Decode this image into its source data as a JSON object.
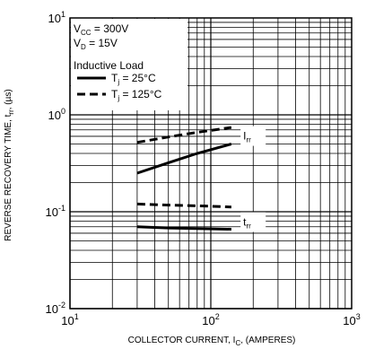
{
  "chart_data": {
    "type": "line",
    "xlabel": "COLLECTOR CURRENT, I",
    "xlabel_sub": "C",
    "xlabel_suffix": ", (AMPERES)",
    "ylabel": "REVERSE RECOVERY TIME, t",
    "ylabel_sub": "rr",
    "ylabel_suffix": ", (µs)",
    "x_scale": "log",
    "y_scale": "log",
    "xlim": [
      10,
      1000
    ],
    "ylim": [
      0.01,
      10
    ],
    "grid": true,
    "x_ticks": [
      {
        "value": 10,
        "base": "10",
        "exp": "1"
      },
      {
        "value": 100,
        "base": "10",
        "exp": "2"
      },
      {
        "value": 1000,
        "base": "10",
        "exp": "3"
      }
    ],
    "y_ticks": [
      {
        "value": 10,
        "base": "10",
        "exp": "1"
      },
      {
        "value": 1,
        "base": "10",
        "exp": "0"
      },
      {
        "value": 0.1,
        "base": "10",
        "exp": "-1"
      },
      {
        "value": 0.01,
        "base": "10",
        "exp": "-2"
      }
    ],
    "conditions": {
      "vcc": {
        "prefix": "V",
        "sub": "CC",
        "suffix": " = 300V"
      },
      "vd": {
        "prefix": "V",
        "sub": "D",
        "suffix": " = 15V"
      },
      "load": "Inductive Load"
    },
    "legend": [
      {
        "style": "solid",
        "prefix": "T",
        "sub": "j",
        "suffix": " = 25°C"
      },
      {
        "style": "dashed",
        "prefix": "T",
        "sub": "j",
        "suffix": " = 125°C"
      }
    ],
    "series": [
      {
        "quantity": "Irr",
        "style": "solid",
        "x": [
          30,
          50,
          80,
          140
        ],
        "y": [
          0.25,
          0.32,
          0.4,
          0.5
        ]
      },
      {
        "quantity": "Irr",
        "style": "dashed",
        "x": [
          30,
          50,
          80,
          140
        ],
        "y": [
          0.52,
          0.59,
          0.66,
          0.74
        ]
      },
      {
        "quantity": "trr",
        "style": "solid",
        "x": [
          30,
          50,
          80,
          140
        ],
        "y": [
          0.07,
          0.068,
          0.067,
          0.066
        ]
      },
      {
        "quantity": "trr",
        "style": "dashed",
        "x": [
          30,
          50,
          80,
          140
        ],
        "y": [
          0.12,
          0.117,
          0.115,
          0.112
        ]
      }
    ],
    "annotations": [
      {
        "prefix": "I",
        "sub": "rr",
        "x": 170,
        "y": 0.58
      },
      {
        "prefix": "t",
        "sub": "rr",
        "x": 170,
        "y": 0.075
      }
    ]
  }
}
